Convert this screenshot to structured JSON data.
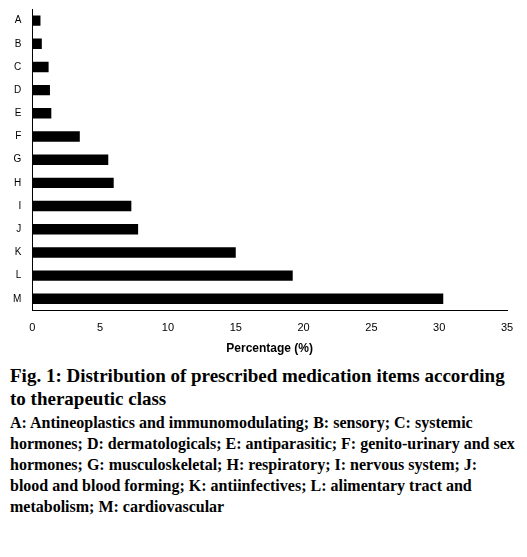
{
  "chart_data": {
    "type": "bar",
    "orientation": "horizontal",
    "title": "Fig. 1: Distribution of prescribed medication items according to therapeutic class",
    "subtitle": "A: Antineoplastics and immunomodulating; B: sensory; C: systemic hormones; D: dermatologicals; E: antiparasitic; F: genito-urinary and sex hormones; G: musculoskeletal; H: respiratory; I: nervous system; J: blood and blood forming; K: antiinfectives; L: alimentary tract and metabolism; M: cardiovascular",
    "xlabel": "Percentage (%)",
    "categories": [
      "A",
      "B",
      "C",
      "D",
      "E",
      "F",
      "G",
      "H",
      "I",
      "J",
      "K",
      "L",
      "M"
    ],
    "values": [
      0.6,
      0.7,
      1.2,
      1.3,
      1.4,
      3.5,
      5.6,
      6.0,
      7.3,
      7.8,
      15.0,
      19.2,
      30.3
    ],
    "color": "#000000",
    "xlim": [
      0,
      35
    ],
    "xticks": [
      0,
      5,
      10,
      15,
      20,
      25,
      30,
      35
    ],
    "grid": false
  }
}
